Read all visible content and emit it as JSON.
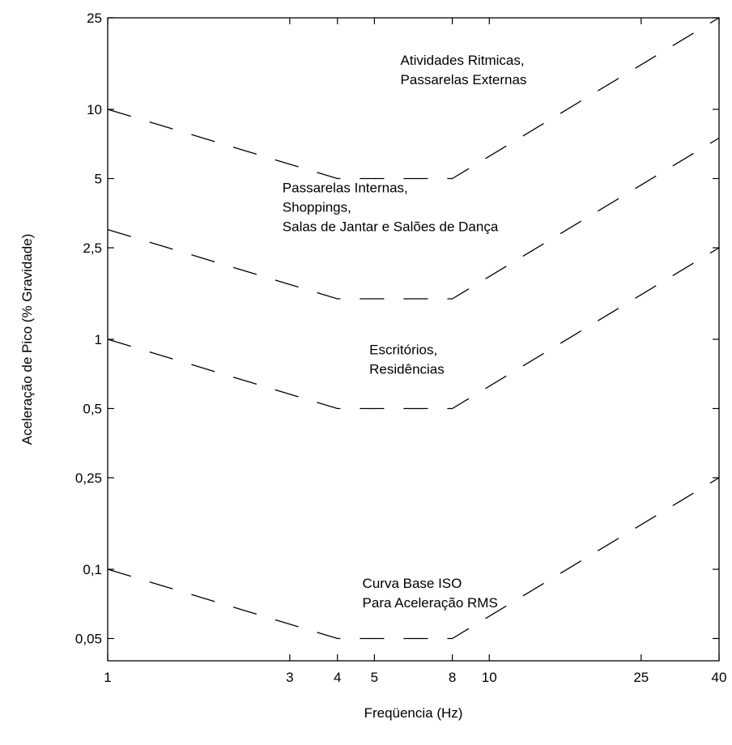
{
  "chart_data": {
    "type": "line",
    "title": "",
    "xlabel": "Freqüencia (Hz)",
    "ylabel": "Aceleração de Pico (% Gravidade)",
    "x_scale": "log",
    "y_scale": "log",
    "xlim": [
      1,
      40
    ],
    "ylim": [
      0.04,
      25
    ],
    "grid": false,
    "x_ticks": [
      {
        "value": 1,
        "label": "1"
      },
      {
        "value": 3,
        "label": "3"
      },
      {
        "value": 4,
        "label": "4"
      },
      {
        "value": 5,
        "label": "5"
      },
      {
        "value": 8,
        "label": "8"
      },
      {
        "value": 10,
        "label": "10"
      },
      {
        "value": 25,
        "label": "25"
      },
      {
        "value": 40,
        "label": "40"
      }
    ],
    "y_ticks": [
      {
        "value": 0.05,
        "label": "0,05"
      },
      {
        "value": 0.1,
        "label": "0,1"
      },
      {
        "value": 0.25,
        "label": "0,25"
      },
      {
        "value": 0.5,
        "label": "0,5"
      },
      {
        "value": 1,
        "label": "1"
      },
      {
        "value": 2.5,
        "label": "2,5"
      },
      {
        "value": 5,
        "label": "5"
      },
      {
        "value": 10,
        "label": "10"
      },
      {
        "value": 25,
        "label": "25"
      }
    ],
    "series": [
      {
        "x": [
          1,
          4,
          8,
          40
        ],
        "y": [
          10,
          5,
          5,
          25
        ]
      },
      {
        "x": [
          1,
          4,
          8,
          40
        ],
        "y": [
          3,
          1.5,
          1.5,
          7.5
        ]
      },
      {
        "x": [
          1,
          4,
          8,
          40
        ],
        "y": [
          1,
          0.5,
          0.5,
          2.5
        ]
      },
      {
        "x": [
          1,
          4,
          8,
          40
        ],
        "y": [
          0.1,
          0.05,
          0.05,
          0.25
        ]
      }
    ],
    "annotations": [
      {
        "lines": [
          "Atividades Ritmicas,",
          "Passarelas Externas"
        ],
        "x": 5.85,
        "y": 15.6
      },
      {
        "lines": [
          "Passarelas Internas,",
          "Shoppings,",
          "Salas de Jantar e Salões de Dança"
        ],
        "x": 2.87,
        "y": 4.35
      },
      {
        "lines": [
          "Escritórios,",
          "Residências"
        ],
        "x": 4.85,
        "y": 0.86
      },
      {
        "lines": [
          "Curva Base ISO",
          "Para Aceleração RMS"
        ],
        "x": 4.65,
        "y": 0.083
      }
    ]
  }
}
